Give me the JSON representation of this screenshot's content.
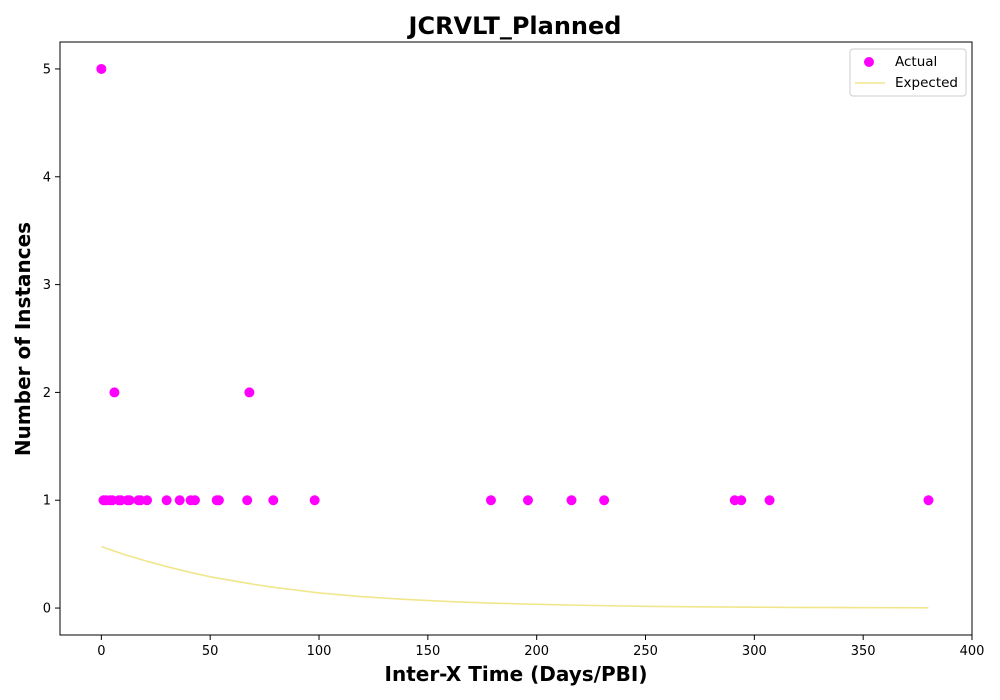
{
  "chart_data": {
    "type": "scatter",
    "title": "JCRVLT_Planned",
    "xlabel": "Inter-X Time (Days/PBI)",
    "ylabel": "Number of Instances",
    "xlim": [
      -19,
      400
    ],
    "ylim": [
      -0.25,
      5.25
    ],
    "xticks": [
      0,
      50,
      100,
      150,
      200,
      250,
      300,
      350,
      400
    ],
    "yticks": [
      0,
      1,
      2,
      3,
      4,
      5
    ],
    "grid": false,
    "legend_position": "top-right",
    "series": [
      {
        "name": "Actual",
        "kind": "scatter",
        "color": "#ff00ff",
        "points": [
          {
            "x": 0,
            "y": 5
          },
          {
            "x": 1,
            "y": 1
          },
          {
            "x": 2,
            "y": 1
          },
          {
            "x": 4,
            "y": 1
          },
          {
            "x": 5,
            "y": 1
          },
          {
            "x": 6,
            "y": 2
          },
          {
            "x": 8,
            "y": 1
          },
          {
            "x": 9,
            "y": 1
          },
          {
            "x": 12,
            "y": 1
          },
          {
            "x": 13,
            "y": 1
          },
          {
            "x": 17,
            "y": 1
          },
          {
            "x": 18,
            "y": 1
          },
          {
            "x": 21,
            "y": 1
          },
          {
            "x": 30,
            "y": 1
          },
          {
            "x": 36,
            "y": 1
          },
          {
            "x": 41,
            "y": 1
          },
          {
            "x": 43,
            "y": 1
          },
          {
            "x": 53,
            "y": 1
          },
          {
            "x": 54,
            "y": 1
          },
          {
            "x": 67,
            "y": 1
          },
          {
            "x": 68,
            "y": 2
          },
          {
            "x": 79,
            "y": 1
          },
          {
            "x": 98,
            "y": 1
          },
          {
            "x": 179,
            "y": 1
          },
          {
            "x": 196,
            "y": 1
          },
          {
            "x": 216,
            "y": 1
          },
          {
            "x": 231,
            "y": 1
          },
          {
            "x": 291,
            "y": 1
          },
          {
            "x": 294,
            "y": 1
          },
          {
            "x": 307,
            "y": 1
          },
          {
            "x": 380,
            "y": 1
          }
        ]
      },
      {
        "name": "Expected",
        "kind": "line",
        "color": "#f0e68c",
        "points": [
          {
            "x": 0,
            "y": 0.57
          },
          {
            "x": 10,
            "y": 0.5
          },
          {
            "x": 20,
            "y": 0.44
          },
          {
            "x": 30,
            "y": 0.385
          },
          {
            "x": 40,
            "y": 0.335
          },
          {
            "x": 50,
            "y": 0.29
          },
          {
            "x": 60,
            "y": 0.255
          },
          {
            "x": 70,
            "y": 0.22
          },
          {
            "x": 80,
            "y": 0.19
          },
          {
            "x": 90,
            "y": 0.165
          },
          {
            "x": 100,
            "y": 0.14
          },
          {
            "x": 120,
            "y": 0.105
          },
          {
            "x": 140,
            "y": 0.08
          },
          {
            "x": 160,
            "y": 0.06
          },
          {
            "x": 180,
            "y": 0.045
          },
          {
            "x": 200,
            "y": 0.035
          },
          {
            "x": 220,
            "y": 0.026
          },
          {
            "x": 240,
            "y": 0.019
          },
          {
            "x": 260,
            "y": 0.014
          },
          {
            "x": 280,
            "y": 0.01
          },
          {
            "x": 300,
            "y": 0.008
          },
          {
            "x": 320,
            "y": 0.006
          },
          {
            "x": 340,
            "y": 0.004
          },
          {
            "x": 360,
            "y": 0.003
          },
          {
            "x": 380,
            "y": 0.002
          }
        ]
      }
    ]
  }
}
